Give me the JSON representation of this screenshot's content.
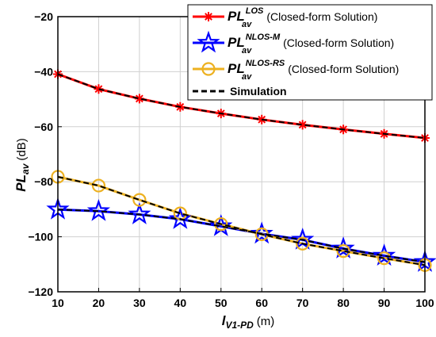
{
  "chart_data": {
    "type": "line",
    "xlabel": {
      "main": "l",
      "sub": "V1-PD",
      "unit": "(m)"
    },
    "ylabel": {
      "main": "PL",
      "sub": "av",
      "unit": "(dB)"
    },
    "xlim": [
      10,
      100
    ],
    "ylim": [
      -120,
      -20
    ],
    "x_ticks": [
      "10",
      "20",
      "30",
      "40",
      "50",
      "60",
      "70",
      "80",
      "90",
      "100"
    ],
    "y_ticks": [
      "-120",
      "-100",
      "-80",
      "-60",
      "-40",
      "-20"
    ],
    "grid": true,
    "legend_position": "top-right",
    "x": [
      10,
      20,
      30,
      40,
      50,
      60,
      70,
      80,
      90,
      100
    ],
    "series": [
      {
        "name": "PL_av^LOS (Closed-form Solution)",
        "legend": {
          "main": "PL",
          "sub": "av",
          "sup": "LOS",
          "desc": "(Closed-form Solution)"
        },
        "color": "#ff0000",
        "marker": "asterisk",
        "values": [
          -40.9,
          -46.3,
          -49.8,
          -52.8,
          -55.2,
          -57.4,
          -59.3,
          -61.0,
          -62.6,
          -64.1
        ]
      },
      {
        "name": "PL_av^NLOS-M (Closed-form Solution)",
        "legend": {
          "main": "PL",
          "sub": "av",
          "sup": "NLOS-M",
          "desc": "(Closed-form Solution)"
        },
        "color": "#0000ff",
        "marker": "star",
        "values": [
          -90.1,
          -90.7,
          -91.9,
          -93.6,
          -96.2,
          -98.9,
          -101.1,
          -104.3,
          -106.9,
          -109.2
        ]
      },
      {
        "name": "PL_av^NLOS-RS (Closed-form Solution)",
        "legend": {
          "main": "PL",
          "sub": "av",
          "sup": "NLOS-RS",
          "desc": "(Closed-form Solution)"
        },
        "color": "#edb120",
        "marker": "circle",
        "values": [
          -78.2,
          -81.4,
          -86.6,
          -91.5,
          -95.4,
          -99.1,
          -102.5,
          -105.2,
          -107.8,
          -110.3
        ]
      },
      {
        "name": "Simulation",
        "legend": {
          "main": "Simulation"
        },
        "color": "#000000",
        "dashed": true,
        "overlays": [
          0,
          1,
          2
        ]
      }
    ]
  }
}
